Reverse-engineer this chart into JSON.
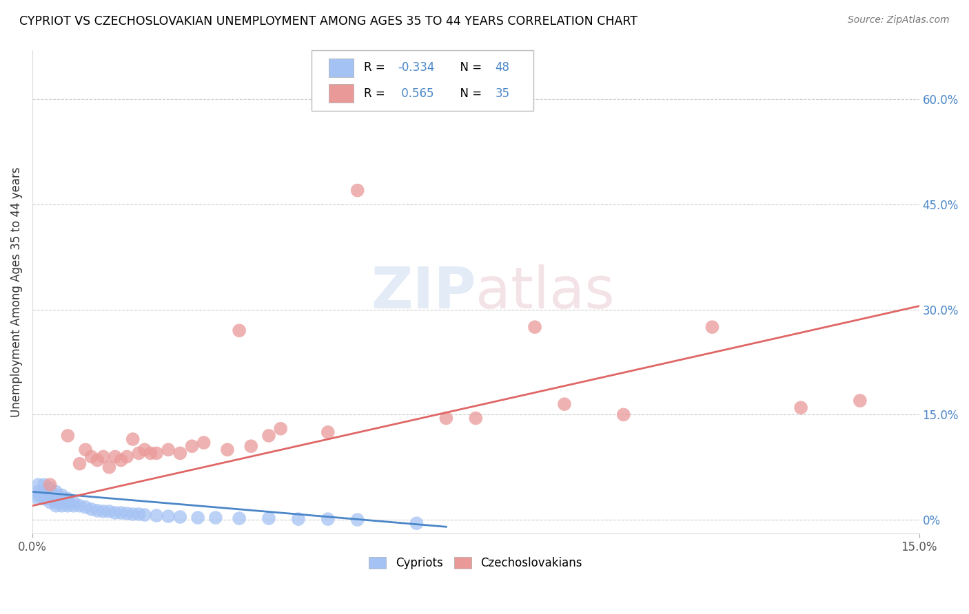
{
  "title": "CYPRIOT VS CZECHOSLOVAKIAN UNEMPLOYMENT AMONG AGES 35 TO 44 YEARS CORRELATION CHART",
  "source": "Source: ZipAtlas.com",
  "ylabel": "Unemployment Among Ages 35 to 44 years",
  "right_ytick_vals": [
    0.0,
    0.15,
    0.3,
    0.45,
    0.6
  ],
  "right_ytick_labels": [
    "0%",
    "15.0%",
    "30.0%",
    "45.0%",
    "60.0%"
  ],
  "xlim": [
    0.0,
    0.15
  ],
  "ylim": [
    -0.02,
    0.67
  ],
  "cypriot_color": "#a4c2f4",
  "czechoslovakian_color": "#ea9999",
  "cypriot_line_color": "#4a86c8",
  "czechoslovakian_line_color": "#e06666",
  "legend_color": "#4a86c8",
  "cypriot_x": [
    0.001,
    0.001,
    0.001,
    0.001,
    0.002,
    0.002,
    0.002,
    0.002,
    0.003,
    0.003,
    0.003,
    0.003,
    0.004,
    0.004,
    0.004,
    0.004,
    0.005,
    0.005,
    0.005,
    0.005,
    0.006,
    0.006,
    0.006,
    0.007,
    0.007,
    0.008,
    0.009,
    0.01,
    0.011,
    0.012,
    0.013,
    0.014,
    0.015,
    0.016,
    0.017,
    0.018,
    0.019,
    0.021,
    0.023,
    0.025,
    0.028,
    0.031,
    0.035,
    0.04,
    0.045,
    0.05,
    0.055,
    0.065
  ],
  "cypriot_y": [
    0.05,
    0.04,
    0.035,
    0.03,
    0.05,
    0.04,
    0.035,
    0.03,
    0.045,
    0.035,
    0.03,
    0.025,
    0.04,
    0.035,
    0.025,
    0.02,
    0.035,
    0.03,
    0.025,
    0.02,
    0.03,
    0.025,
    0.02,
    0.025,
    0.02,
    0.02,
    0.018,
    0.015,
    0.013,
    0.012,
    0.012,
    0.01,
    0.01,
    0.009,
    0.008,
    0.008,
    0.007,
    0.006,
    0.005,
    0.004,
    0.003,
    0.003,
    0.002,
    0.002,
    0.001,
    0.001,
    0.0,
    -0.005
  ],
  "czechoslovakian_x": [
    0.003,
    0.006,
    0.008,
    0.009,
    0.01,
    0.011,
    0.012,
    0.013,
    0.014,
    0.015,
    0.016,
    0.017,
    0.018,
    0.019,
    0.02,
    0.021,
    0.023,
    0.025,
    0.027,
    0.029,
    0.033,
    0.035,
    0.037,
    0.04,
    0.042,
    0.05,
    0.055,
    0.07,
    0.075,
    0.085,
    0.09,
    0.1,
    0.115,
    0.13,
    0.14
  ],
  "czechoslovakian_y": [
    0.05,
    0.12,
    0.08,
    0.1,
    0.09,
    0.085,
    0.09,
    0.075,
    0.09,
    0.085,
    0.09,
    0.115,
    0.095,
    0.1,
    0.095,
    0.095,
    0.1,
    0.095,
    0.105,
    0.11,
    0.1,
    0.27,
    0.105,
    0.12,
    0.13,
    0.125,
    0.47,
    0.145,
    0.145,
    0.275,
    0.165,
    0.15,
    0.275,
    0.16,
    0.17
  ],
  "cypriot_line_x": [
    0.0,
    0.07
  ],
  "cypriot_line_y": [
    0.04,
    -0.01
  ],
  "czechoslovakian_line_x": [
    0.0,
    0.15
  ],
  "czechoslovakian_line_y": [
    0.02,
    0.305
  ]
}
